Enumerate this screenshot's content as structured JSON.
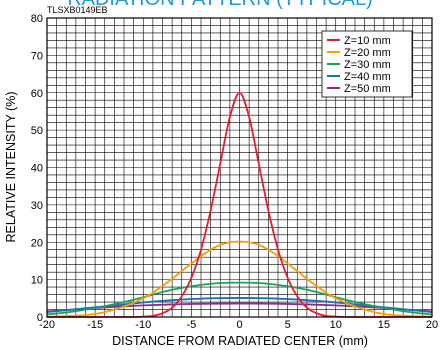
{
  "figure_code": "TLSXB0149EB",
  "title_fragment": "RADIATION PATTERN (TYPICAL)",
  "chart_data": {
    "type": "line",
    "xlabel": "DISTANCE FROM RADIATED CENTER (mm)",
    "ylabel": "RELATIVE INTENSITY (%)",
    "xlim": [
      -20,
      20
    ],
    "ylim": [
      0,
      80
    ],
    "x_ticks": [
      -20,
      -15,
      -10,
      -5,
      0,
      5,
      10,
      15,
      20
    ],
    "y_ticks": [
      0,
      10,
      20,
      30,
      40,
      50,
      60,
      70,
      80
    ],
    "grid": true,
    "legend_position": "top-right",
    "series": [
      {
        "name": "Z=10 mm",
        "color": "#e0202a",
        "x": [
          -20,
          -12,
          -10,
          -9,
          -8,
          -7,
          -6,
          -5,
          -4,
          -3,
          -2,
          -1,
          0,
          1,
          2,
          3,
          4,
          5,
          6,
          7,
          8,
          9,
          10,
          12,
          20
        ],
        "y": [
          0,
          0,
          0.1,
          0.3,
          1,
          2.5,
          5.5,
          10.5,
          18,
          28.5,
          41,
          53.5,
          60,
          53.5,
          41,
          28.5,
          18,
          10.5,
          5.5,
          2.5,
          1,
          0.3,
          0.1,
          0,
          0
        ]
      },
      {
        "name": "Z=20 mm",
        "color": "#f5a000",
        "x": [
          -20,
          -16,
          -14,
          -12,
          -10,
          -9,
          -8,
          -7,
          -6,
          -5,
          -4,
          -3,
          -2,
          -1,
          0,
          1,
          2,
          3,
          4,
          5,
          6,
          7,
          8,
          9,
          10,
          12,
          14,
          16,
          20
        ],
        "y": [
          0.1,
          0.5,
          1.3,
          2.8,
          5,
          6.5,
          8.3,
          10.2,
          12.3,
          14.3,
          16.3,
          18,
          19.3,
          20,
          20.2,
          20,
          19.3,
          18,
          16.3,
          14.3,
          12.3,
          10.2,
          8.3,
          6.5,
          5,
          2.8,
          1.3,
          0.5,
          0.1
        ]
      },
      {
        "name": "Z=30 mm",
        "color": "#1fa05a",
        "x": [
          -20,
          -18,
          -15,
          -12,
          -10,
          -8,
          -6,
          -4,
          -2,
          0,
          2,
          4,
          6,
          8,
          10,
          12,
          15,
          18,
          20
        ],
        "y": [
          0.7,
          1.2,
          2.4,
          4,
          5.3,
          6.7,
          7.8,
          8.6,
          9.1,
          9.2,
          9.1,
          8.6,
          7.8,
          6.7,
          5.3,
          4,
          2.4,
          1.2,
          0.7
        ]
      },
      {
        "name": "Z=40 mm",
        "color": "#1a6fb5",
        "x": [
          -20,
          -15,
          -10,
          -7,
          -5,
          -3,
          0,
          3,
          5,
          7,
          10,
          15,
          20
        ],
        "y": [
          1.3,
          2.6,
          3.9,
          4.5,
          4.8,
          5,
          5.1,
          5,
          4.8,
          4.5,
          3.9,
          2.6,
          1.3
        ]
      },
      {
        "name": "Z=50 mm",
        "color": "#8a2b8e",
        "x": [
          -20,
          -15,
          -10,
          -5,
          0,
          5,
          10,
          15,
          20
        ],
        "y": [
          1.5,
          2.4,
          3.1,
          3.5,
          3.6,
          3.5,
          3.1,
          2.4,
          1.5
        ]
      }
    ]
  }
}
